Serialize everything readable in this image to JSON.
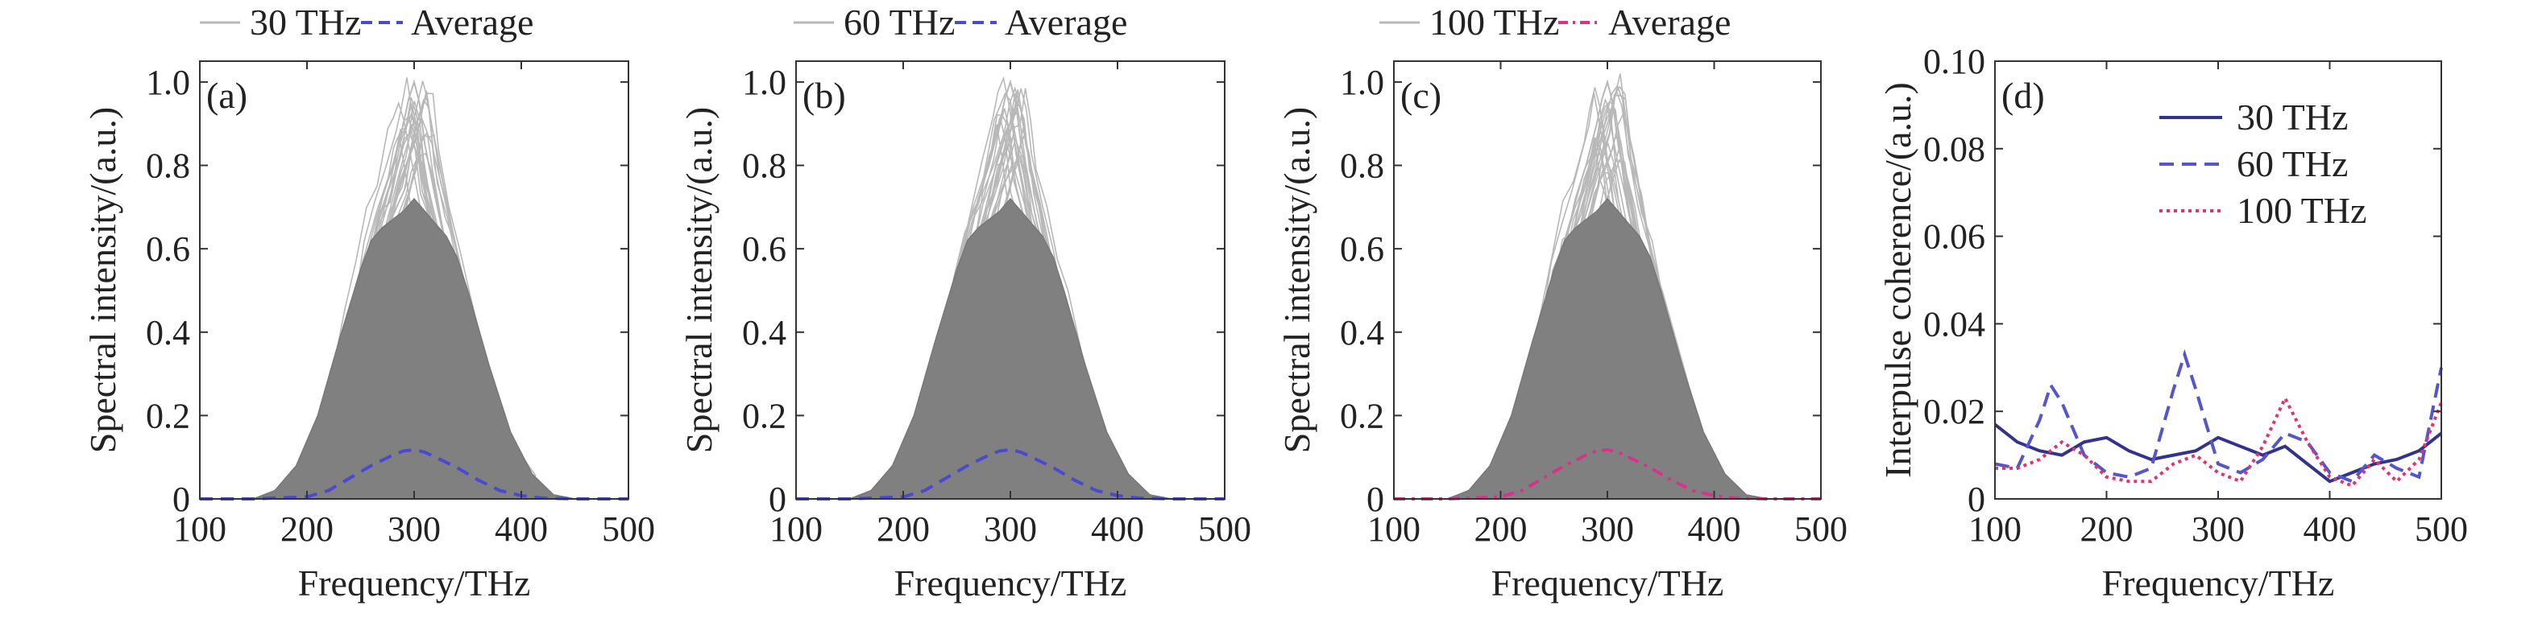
{
  "colors": {
    "envelope": "#808080",
    "trace": "#b8b8b8",
    "average_blue": "#4a4ad0",
    "average_pink": "#d7338a",
    "avg_dot_gray": "#9a9a9a",
    "c30": "#33338a",
    "c60": "#5555cc",
    "c100": "#e0336f",
    "axis": "#333333"
  },
  "chart_data": [
    {
      "type": "area",
      "panel": "(a)",
      "xlabel": "Frequency/THz",
      "ylabel": "Spectral intensity/(a.u.)",
      "xlim": [
        100,
        500
      ],
      "ylim": [
        0,
        1.05
      ],
      "xticks": [
        100,
        200,
        300,
        400,
        500
      ],
      "yticks": [
        0,
        0.2,
        0.4,
        0.6,
        0.8,
        1.0
      ],
      "ytick_labels": [
        "0",
        "0.2",
        "0.4",
        "0.6",
        "0.8",
        "1.0"
      ],
      "legend": [
        "30 THz",
        "Average"
      ],
      "average_style": "dash-blue",
      "envelope": {
        "x": [
          150,
          170,
          190,
          210,
          230,
          250,
          260,
          270,
          280,
          290,
          300,
          310,
          320,
          330,
          340,
          350,
          370,
          390,
          410,
          430,
          450
        ],
        "y": [
          0,
          0.02,
          0.08,
          0.2,
          0.38,
          0.55,
          0.62,
          0.65,
          0.67,
          0.69,
          0.72,
          0.69,
          0.66,
          0.63,
          0.58,
          0.5,
          0.32,
          0.16,
          0.06,
          0.01,
          0
        ]
      },
      "peak_trace": {
        "x": [
          200,
          230,
          250,
          260,
          270,
          280,
          290,
          295,
          300,
          305,
          310,
          320,
          330,
          340,
          360,
          380,
          400
        ],
        "y": [
          0.04,
          0.22,
          0.45,
          0.6,
          0.72,
          0.8,
          0.9,
          0.96,
          1.0,
          0.95,
          0.85,
          0.72,
          0.6,
          0.5,
          0.3,
          0.12,
          0.03
        ]
      },
      "average": {
        "x": [
          100,
          150,
          200,
          220,
          240,
          260,
          280,
          290,
          300,
          310,
          320,
          340,
          360,
          380,
          400,
          420,
          450,
          500
        ],
        "y": [
          0,
          0,
          0.005,
          0.02,
          0.05,
          0.08,
          0.105,
          0.115,
          0.118,
          0.112,
          0.1,
          0.075,
          0.045,
          0.02,
          0.008,
          0.002,
          0,
          0
        ]
      }
    },
    {
      "type": "area",
      "panel": "(b)",
      "xlabel": "Frequency/THz",
      "ylabel": "Spectral intensity/(a.u.)",
      "xlim": [
        100,
        500
      ],
      "ylim": [
        0,
        1.05
      ],
      "xticks": [
        100,
        200,
        300,
        400,
        500
      ],
      "yticks": [
        0,
        0.2,
        0.4,
        0.6,
        0.8,
        1.0
      ],
      "ytick_labels": [
        "0",
        "0.2",
        "0.4",
        "0.6",
        "0.8",
        "1.0"
      ],
      "legend": [
        "60 THz",
        "Average"
      ],
      "average_style": "dash-blue",
      "envelope": {
        "x": [
          150,
          170,
          190,
          210,
          230,
          250,
          260,
          270,
          280,
          290,
          300,
          310,
          320,
          330,
          340,
          350,
          370,
          390,
          410,
          430,
          450
        ],
        "y": [
          0,
          0.02,
          0.08,
          0.2,
          0.38,
          0.55,
          0.62,
          0.65,
          0.67,
          0.69,
          0.72,
          0.69,
          0.66,
          0.63,
          0.58,
          0.5,
          0.32,
          0.16,
          0.06,
          0.01,
          0
        ]
      },
      "peak_trace": {
        "x": [
          200,
          230,
          250,
          260,
          270,
          280,
          290,
          295,
          300,
          305,
          310,
          320,
          330,
          340,
          360,
          380,
          400
        ],
        "y": [
          0.04,
          0.22,
          0.45,
          0.6,
          0.72,
          0.8,
          0.9,
          0.96,
          1.0,
          0.95,
          0.85,
          0.72,
          0.6,
          0.5,
          0.3,
          0.12,
          0.03
        ]
      },
      "average": {
        "x": [
          100,
          150,
          200,
          220,
          240,
          260,
          280,
          290,
          300,
          310,
          320,
          340,
          360,
          380,
          400,
          420,
          450,
          500
        ],
        "y": [
          0,
          0,
          0.005,
          0.02,
          0.05,
          0.08,
          0.105,
          0.115,
          0.118,
          0.112,
          0.1,
          0.075,
          0.045,
          0.02,
          0.008,
          0.002,
          0,
          0
        ]
      }
    },
    {
      "type": "area",
      "panel": "(c)",
      "xlabel": "Frequency/THz",
      "ylabel": "Spectral intensity/(a.u.)",
      "xlim": [
        100,
        500
      ],
      "ylim": [
        0,
        1.05
      ],
      "xticks": [
        100,
        200,
        300,
        400,
        500
      ],
      "yticks": [
        0,
        0.2,
        0.4,
        0.6,
        0.8,
        1.0
      ],
      "ytick_labels": [
        "0",
        "0.2",
        "0.4",
        "0.6",
        "0.8",
        "1.0"
      ],
      "legend": [
        "100 THz",
        "Average"
      ],
      "average_style": "dashdot-pink",
      "envelope": {
        "x": [
          150,
          170,
          190,
          210,
          230,
          250,
          260,
          270,
          280,
          290,
          300,
          310,
          320,
          330,
          340,
          350,
          370,
          390,
          410,
          430,
          450
        ],
        "y": [
          0,
          0.02,
          0.08,
          0.2,
          0.38,
          0.55,
          0.62,
          0.65,
          0.67,
          0.69,
          0.72,
          0.69,
          0.66,
          0.63,
          0.58,
          0.5,
          0.32,
          0.16,
          0.06,
          0.01,
          0
        ]
      },
      "peak_trace": {
        "x": [
          200,
          230,
          250,
          260,
          270,
          280,
          290,
          295,
          300,
          305,
          310,
          320,
          330,
          340,
          360,
          380,
          400
        ],
        "y": [
          0.04,
          0.22,
          0.45,
          0.6,
          0.72,
          0.8,
          0.9,
          0.96,
          1.0,
          0.95,
          0.85,
          0.72,
          0.6,
          0.5,
          0.3,
          0.12,
          0.03
        ]
      },
      "average": {
        "x": [
          100,
          150,
          200,
          220,
          240,
          260,
          280,
          290,
          300,
          310,
          320,
          340,
          360,
          380,
          400,
          420,
          450,
          500
        ],
        "y": [
          0,
          0,
          0.005,
          0.02,
          0.05,
          0.08,
          0.105,
          0.115,
          0.118,
          0.112,
          0.1,
          0.075,
          0.045,
          0.02,
          0.008,
          0.002,
          0,
          0
        ]
      }
    },
    {
      "type": "line",
      "panel": "(d)",
      "xlabel": "Frequency/THz",
      "ylabel": "Interpulse coherence/(a.u.)",
      "xlim": [
        100,
        500
      ],
      "ylim": [
        0,
        0.1
      ],
      "xticks": [
        100,
        200,
        300,
        400,
        500
      ],
      "yticks": [
        0,
        0.02,
        0.04,
        0.06,
        0.08,
        0.1
      ],
      "ytick_labels": [
        "0",
        "0.02",
        "0.04",
        "0.06",
        "0.08",
        "0.10"
      ],
      "legend_position": "top-right",
      "series": [
        {
          "name": "30 THz",
          "style": "solid",
          "x": [
            100,
            120,
            140,
            160,
            180,
            200,
            220,
            240,
            260,
            280,
            300,
            320,
            340,
            360,
            380,
            400,
            420,
            440,
            460,
            480,
            500
          ],
          "y": [
            0.017,
            0.013,
            0.011,
            0.01,
            0.013,
            0.014,
            0.011,
            0.009,
            0.01,
            0.011,
            0.014,
            0.012,
            0.01,
            0.012,
            0.008,
            0.004,
            0.006,
            0.008,
            0.009,
            0.011,
            0.015
          ]
        },
        {
          "name": "60 THz",
          "style": "dash",
          "x": [
            100,
            120,
            140,
            150,
            160,
            180,
            200,
            220,
            240,
            260,
            270,
            280,
            300,
            320,
            340,
            360,
            380,
            400,
            420,
            440,
            460,
            480,
            500
          ],
          "y": [
            0.008,
            0.007,
            0.018,
            0.026,
            0.022,
            0.01,
            0.006,
            0.005,
            0.007,
            0.025,
            0.033,
            0.025,
            0.008,
            0.006,
            0.009,
            0.015,
            0.013,
            0.006,
            0.004,
            0.01,
            0.007,
            0.005,
            0.03
          ]
        },
        {
          "name": "100 THz",
          "style": "dot",
          "x": [
            100,
            120,
            140,
            160,
            180,
            200,
            220,
            240,
            260,
            280,
            300,
            320,
            340,
            360,
            380,
            400,
            420,
            440,
            460,
            480,
            500
          ],
          "y": [
            0.007,
            0.007,
            0.009,
            0.013,
            0.01,
            0.005,
            0.004,
            0.004,
            0.008,
            0.01,
            0.006,
            0.004,
            0.012,
            0.023,
            0.013,
            0.005,
            0.003,
            0.009,
            0.004,
            0.009,
            0.022
          ]
        }
      ]
    }
  ]
}
